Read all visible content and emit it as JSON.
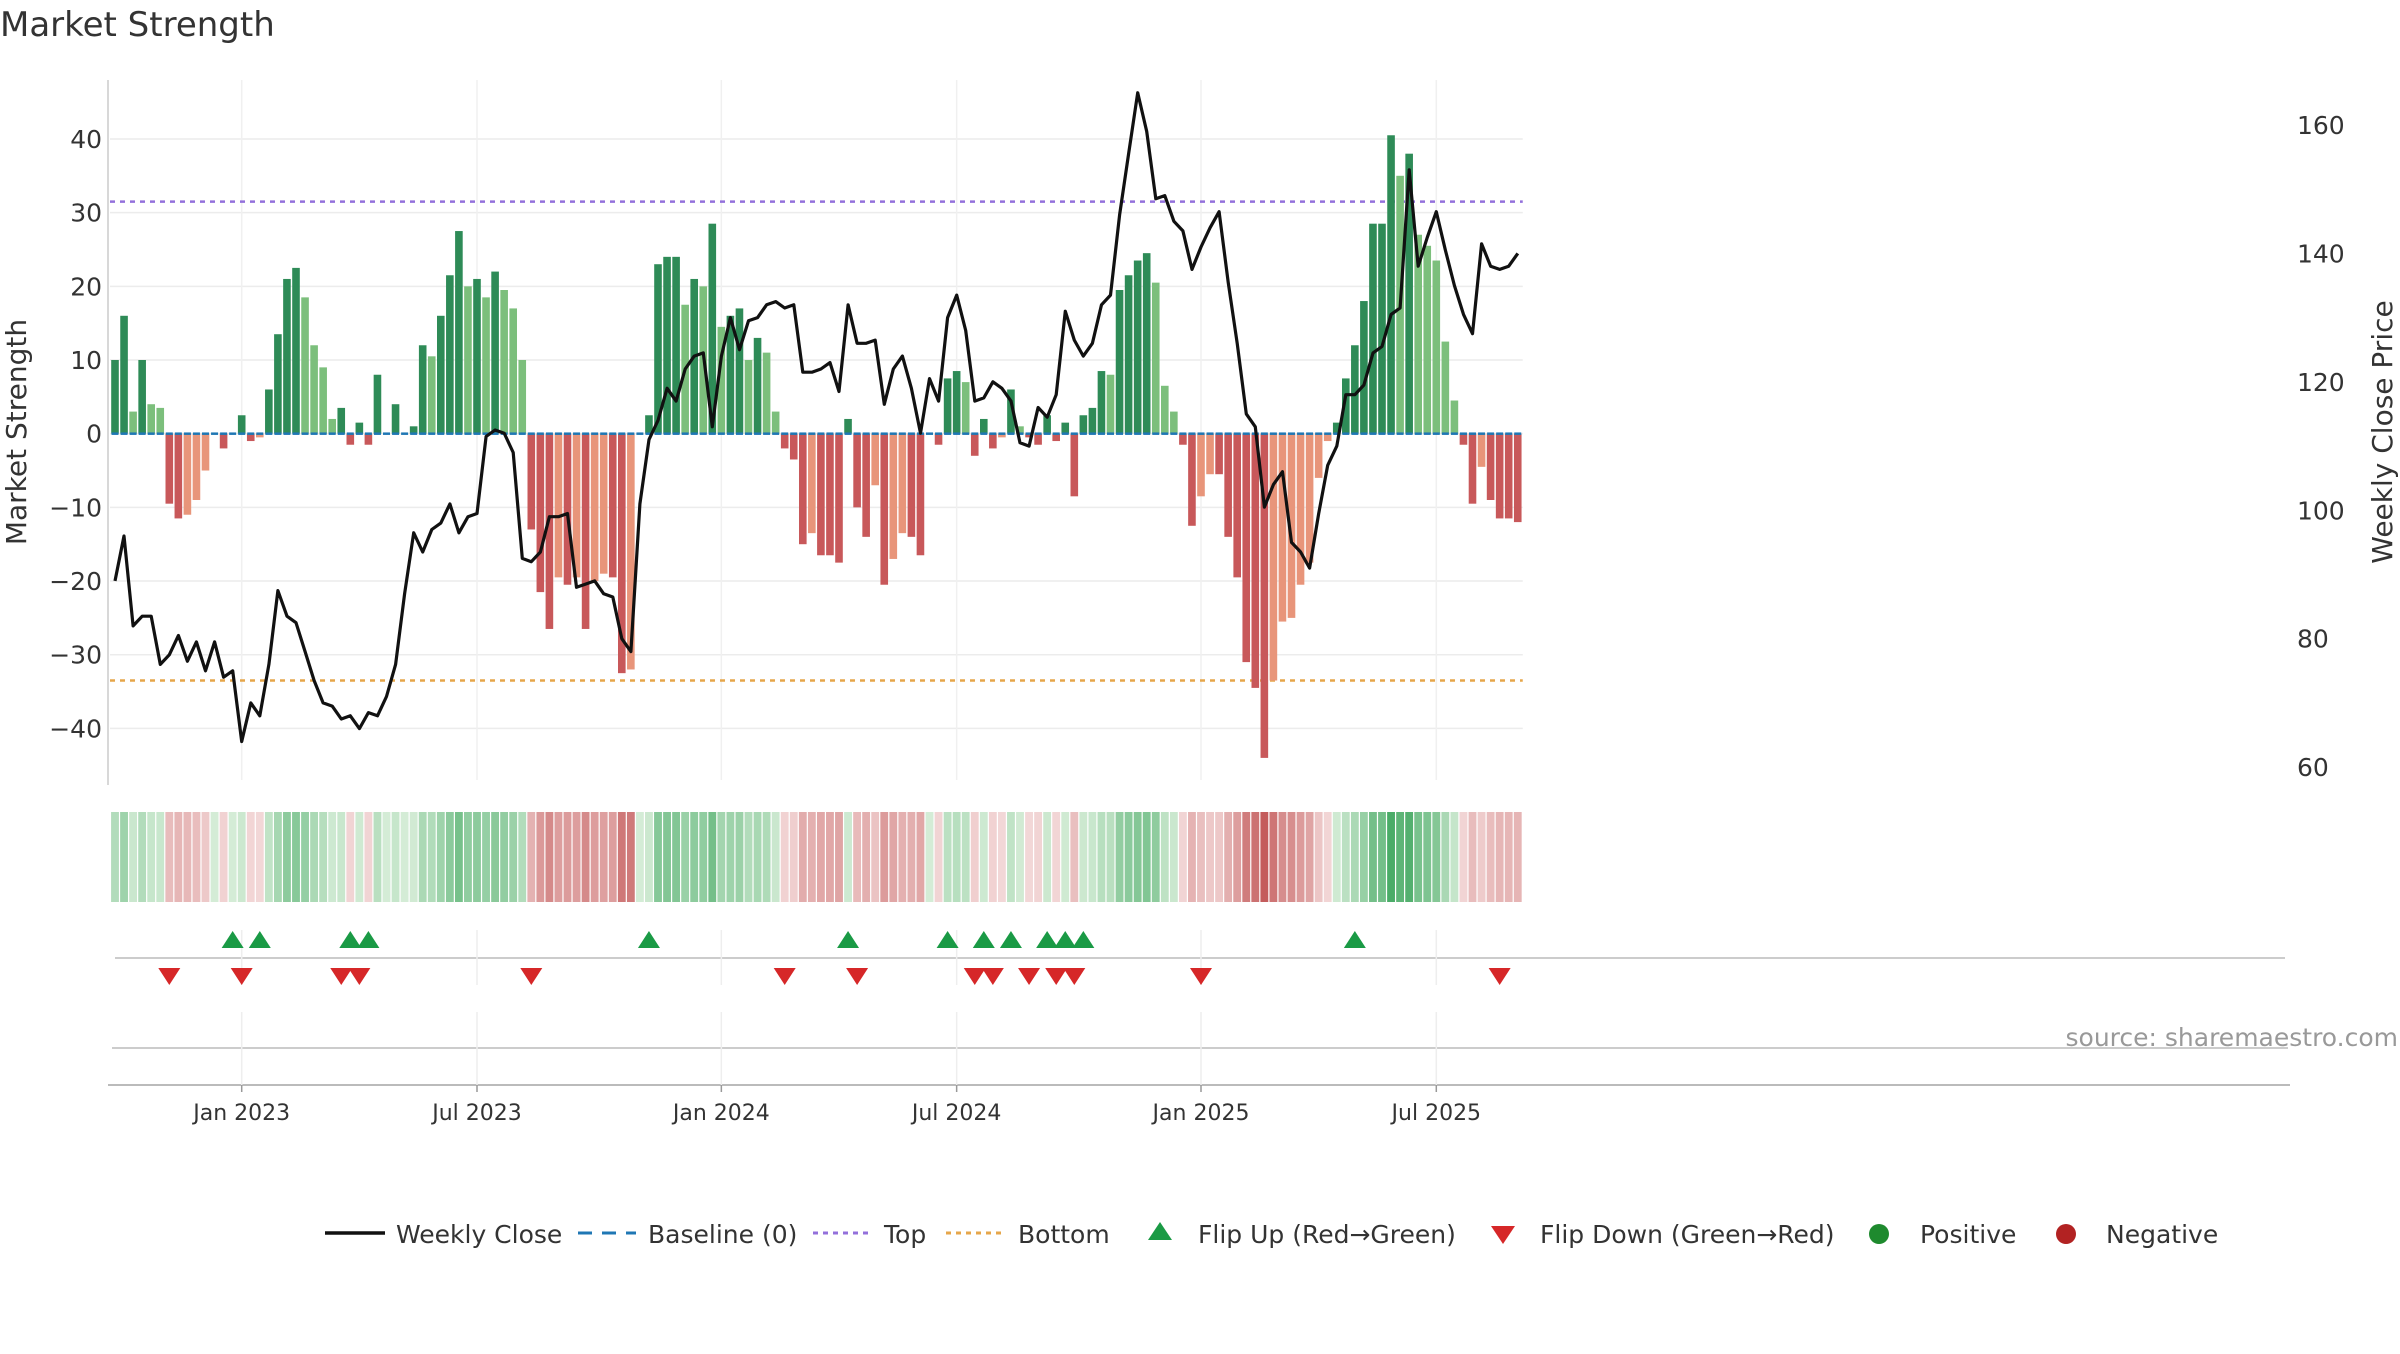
{
  "chart_data": {
    "type": "bar",
    "title": "Market Strength",
    "source": "source: sharemaestro.com",
    "y_left": {
      "label": "Market Strength",
      "lim": [
        -47,
        48
      ],
      "ticks": [
        40,
        30,
        20,
        10,
        0,
        -10,
        -20,
        -30,
        -40
      ]
    },
    "y_right": {
      "label": "Weekly Close Price",
      "lim": [
        58,
        167
      ],
      "ticks": [
        160,
        140,
        120,
        100,
        80,
        60
      ]
    },
    "x_ticks": [
      "Jan 2023",
      "Jul 2023",
      "Jan 2024",
      "Jul 2024",
      "Jan 2025",
      "Jul 2025"
    ],
    "x_tick_week": [
      14,
      40,
      67,
      93,
      120,
      146
    ],
    "top_level": 31.5,
    "bottom_level": -33.5,
    "legend": {
      "weekly_close": "Weekly Close",
      "baseline": "Baseline (0)",
      "top": "Top",
      "bottom": "Bottom",
      "flip_up": "Flip Up (Red→Green)",
      "flip_down": "Flip Down (Green→Red)",
      "positive": "Positive",
      "negative": "Negative"
    },
    "colors": {
      "green_dark": "#2e8b57",
      "green_light": "#7cbf7c",
      "red_dark": "#c8585a",
      "red_light": "#e8957a",
      "top_line": "#9370db",
      "bottom_line": "#e6a64a",
      "close_line": "#111111",
      "baseline": "#1f77b4",
      "flip_up": "#1a9a45",
      "flip_down": "#d62728",
      "positive": "#1e8a2e",
      "negative": "#b22222"
    },
    "strength": [
      10,
      16,
      3,
      10,
      4,
      3.5,
      -9.5,
      -11.5,
      -11,
      -9,
      -5,
      0,
      -2,
      0,
      2.5,
      -1,
      -0.5,
      6,
      13.5,
      21,
      22.5,
      18.5,
      12,
      9,
      2,
      3.5,
      -1.5,
      1.5,
      -1.5,
      8,
      0,
      4,
      0,
      1,
      12,
      10.5,
      16,
      21.5,
      27.5,
      20,
      21,
      18.5,
      22,
      19.5,
      17,
      10,
      -13,
      -21.5,
      -26.5,
      -19.5,
      -20.5,
      -19.5,
      -26.5,
      -20,
      -19,
      -19.5,
      -32.5,
      -32,
      0,
      2.5,
      23,
      24,
      24,
      17.5,
      21,
      20,
      28.5,
      14.5,
      16,
      17,
      10,
      13,
      11,
      3,
      -2,
      -3.5,
      -15,
      -13.5,
      -16.5,
      -16.5,
      -17.5,
      2,
      -10,
      -14,
      -7,
      -20.5,
      -17,
      -13.5,
      -14,
      -16.5,
      0,
      -1.5,
      7.5,
      8.5,
      7,
      -3,
      2,
      -2,
      -0.5,
      6,
      1,
      -0.5,
      -1.5,
      2.5,
      -1,
      1.5,
      -8.5,
      2.5,
      3.5,
      8.5,
      8,
      19.5,
      21.5,
      23.5,
      24.5,
      20.5,
      6.5,
      3,
      -1.5,
      -12.5,
      -8.5,
      -5.5,
      -5.5,
      -14,
      -19.5,
      -31,
      -34.5,
      -44,
      -33.5,
      -25.5,
      -25,
      -20.5,
      -17.5,
      -6,
      -1,
      1.5,
      7.5,
      12,
      18,
      28.5,
      28.5,
      40.5,
      35,
      38,
      27,
      25.5,
      23.5,
      12.5,
      4.5,
      -1.5,
      -9.5,
      -4.5,
      -9,
      -11.5,
      -11.5,
      -12
    ],
    "close": [
      89,
      96,
      82,
      83.5,
      83.5,
      76,
      77.5,
      80.5,
      76.5,
      79.5,
      75,
      79.5,
      74,
      75,
      64,
      70,
      68,
      76,
      87.5,
      83.5,
      82.5,
      78,
      73.5,
      70,
      69.5,
      67.5,
      68,
      66,
      68.5,
      68,
      71,
      76,
      87,
      96.5,
      93.5,
      97,
      98,
      101,
      96.5,
      99,
      99.5,
      111.5,
      112.5,
      112,
      109,
      92.5,
      92,
      93.5,
      99,
      99,
      99.5,
      88,
      88.5,
      89,
      87,
      86.5,
      80,
      78,
      101,
      111,
      114,
      119,
      117,
      122,
      124,
      124.5,
      113,
      124,
      130,
      125,
      129.5,
      130,
      132,
      132.5,
      131.5,
      132,
      121.5,
      121.5,
      122,
      123,
      118.5,
      132,
      126,
      126,
      126.5,
      116.5,
      122,
      124,
      119,
      112,
      120.5,
      117,
      130,
      133.5,
      128,
      117,
      117.5,
      120,
      119,
      117,
      110.5,
      110,
      116,
      114.5,
      118,
      131,
      126.5,
      124,
      126,
      132,
      133.5,
      146,
      155.5,
      165,
      159,
      148.5,
      149,
      145,
      143.5,
      137.5,
      141,
      144,
      146.5,
      135.5,
      126,
      115,
      113,
      100.5,
      104,
      106,
      95,
      93.5,
      91,
      99.5,
      107,
      110,
      118,
      118,
      119.5,
      124.5,
      125.5,
      130.5,
      131.5,
      153,
      138,
      142.5,
      146.5,
      140.5,
      135,
      130.5,
      127.5,
      141.5,
      138,
      137.5,
      138,
      140
    ],
    "heat_strip": "per-week tint of market strength (green positive, red negative)",
    "flip_up_weeks": [
      13,
      16,
      26,
      28,
      59,
      81,
      92,
      96,
      99,
      103,
      105,
      107,
      137
    ],
    "flip_down_weeks": [
      6,
      14,
      25,
      27,
      46,
      74,
      82,
      95,
      97,
      101,
      104,
      106,
      120,
      153
    ]
  }
}
